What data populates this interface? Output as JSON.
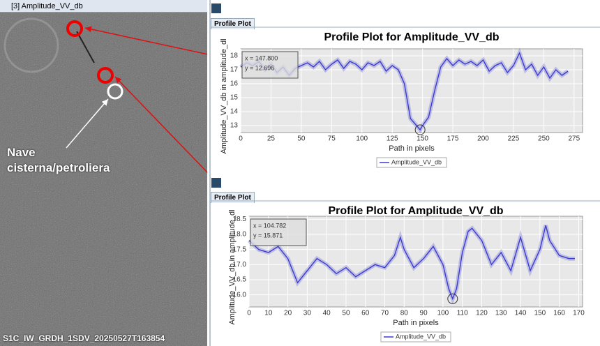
{
  "window_title": "[3] Amplitude_VV_db",
  "annotation": "Nave cisterna/petroliera",
  "image_label": "S1C_IW_GRDH_1SDV_20250527T163854",
  "tab_label": "Profile Plot",
  "chart_data": [
    {
      "type": "line",
      "title": "Profile Plot for Amplitude_VV_db",
      "x_label": "Path in pixels",
      "y_label": "Amplitude_VV_db in amplitude_dl",
      "cursor_labels": [
        "x = 147.800",
        "y = 12.696"
      ],
      "grid": true,
      "x": [
        0,
        5,
        10,
        15,
        20,
        25,
        30,
        35,
        40,
        45,
        50,
        55,
        60,
        65,
        70,
        75,
        80,
        85,
        90,
        95,
        100,
        105,
        110,
        115,
        120,
        125,
        130,
        135,
        140,
        145,
        148,
        150,
        155,
        160,
        165,
        170,
        175,
        180,
        185,
        190,
        195,
        200,
        205,
        210,
        215,
        220,
        225,
        230,
        235,
        240,
        245,
        250,
        255,
        260,
        265,
        270
      ],
      "series": [
        {
          "name": "Amplitude_VV_db",
          "color": "#3a3ad0",
          "values": [
            17.2,
            17.5,
            17.3,
            17.6,
            17.0,
            17.4,
            16.8,
            17.2,
            16.6,
            17.1,
            17.3,
            17.5,
            17.2,
            17.6,
            17.0,
            17.4,
            17.7,
            17.1,
            17.6,
            17.4,
            17.0,
            17.5,
            17.3,
            17.6,
            16.9,
            17.3,
            17.0,
            16.0,
            13.5,
            13.0,
            12.7,
            13.0,
            13.6,
            15.5,
            17.2,
            17.8,
            17.3,
            17.7,
            17.4,
            17.6,
            17.3,
            17.7,
            16.9,
            17.3,
            17.5,
            16.8,
            17.3,
            18.2,
            17.0,
            17.4,
            16.6,
            17.2,
            16.4,
            17.0,
            16.6,
            16.9
          ]
        }
      ],
      "xlim": [
        0,
        282
      ],
      "ylim": [
        12.5,
        18.5
      ],
      "xticks": [
        0,
        25,
        50,
        75,
        100,
        125,
        150,
        175,
        200,
        225,
        250,
        275
      ],
      "yticks": [
        13,
        14,
        15,
        16,
        17,
        18
      ]
    },
    {
      "type": "line",
      "title": "Profile Plot for Amplitude_VV_db",
      "x_label": "Path in pixels",
      "y_label": "Amplitude_VV_db in amplitude_dl",
      "cursor_labels": [
        "x = 104.782",
        "y = 15.871"
      ],
      "grid": true,
      "x": [
        0,
        5,
        10,
        15,
        20,
        25,
        30,
        35,
        40,
        45,
        50,
        55,
        60,
        65,
        70,
        75,
        78,
        80,
        85,
        90,
        95,
        100,
        103,
        105,
        107,
        110,
        113,
        115,
        120,
        125,
        130,
        135,
        140,
        145,
        150,
        153,
        155,
        160,
        165,
        168
      ],
      "series": [
        {
          "name": "Amplitude_VV_db",
          "color": "#3a3ad0",
          "values": [
            17.8,
            17.5,
            17.4,
            17.6,
            17.2,
            16.4,
            16.8,
            17.2,
            17.0,
            16.7,
            16.9,
            16.6,
            16.8,
            17.0,
            16.9,
            17.3,
            17.9,
            17.5,
            16.9,
            17.2,
            17.6,
            17.0,
            16.2,
            15.87,
            16.2,
            17.4,
            18.1,
            18.2,
            17.8,
            17.0,
            17.4,
            16.8,
            17.9,
            16.8,
            17.5,
            18.3,
            17.8,
            17.3,
            17.2,
            17.2
          ]
        }
      ],
      "xlim": [
        0,
        172
      ],
      "ylim": [
        15.6,
        18.6
      ],
      "xticks": [
        0,
        10,
        20,
        30,
        40,
        50,
        60,
        70,
        80,
        90,
        100,
        110,
        120,
        130,
        140,
        150,
        160,
        170
      ],
      "yticks": [
        {
          "value": 16,
          "label": "16.0"
        },
        16.5,
        {
          "value": 17,
          "label": "17.0"
        },
        17.5,
        {
          "value": 18,
          "label": "18.0"
        },
        18.5
      ]
    }
  ]
}
